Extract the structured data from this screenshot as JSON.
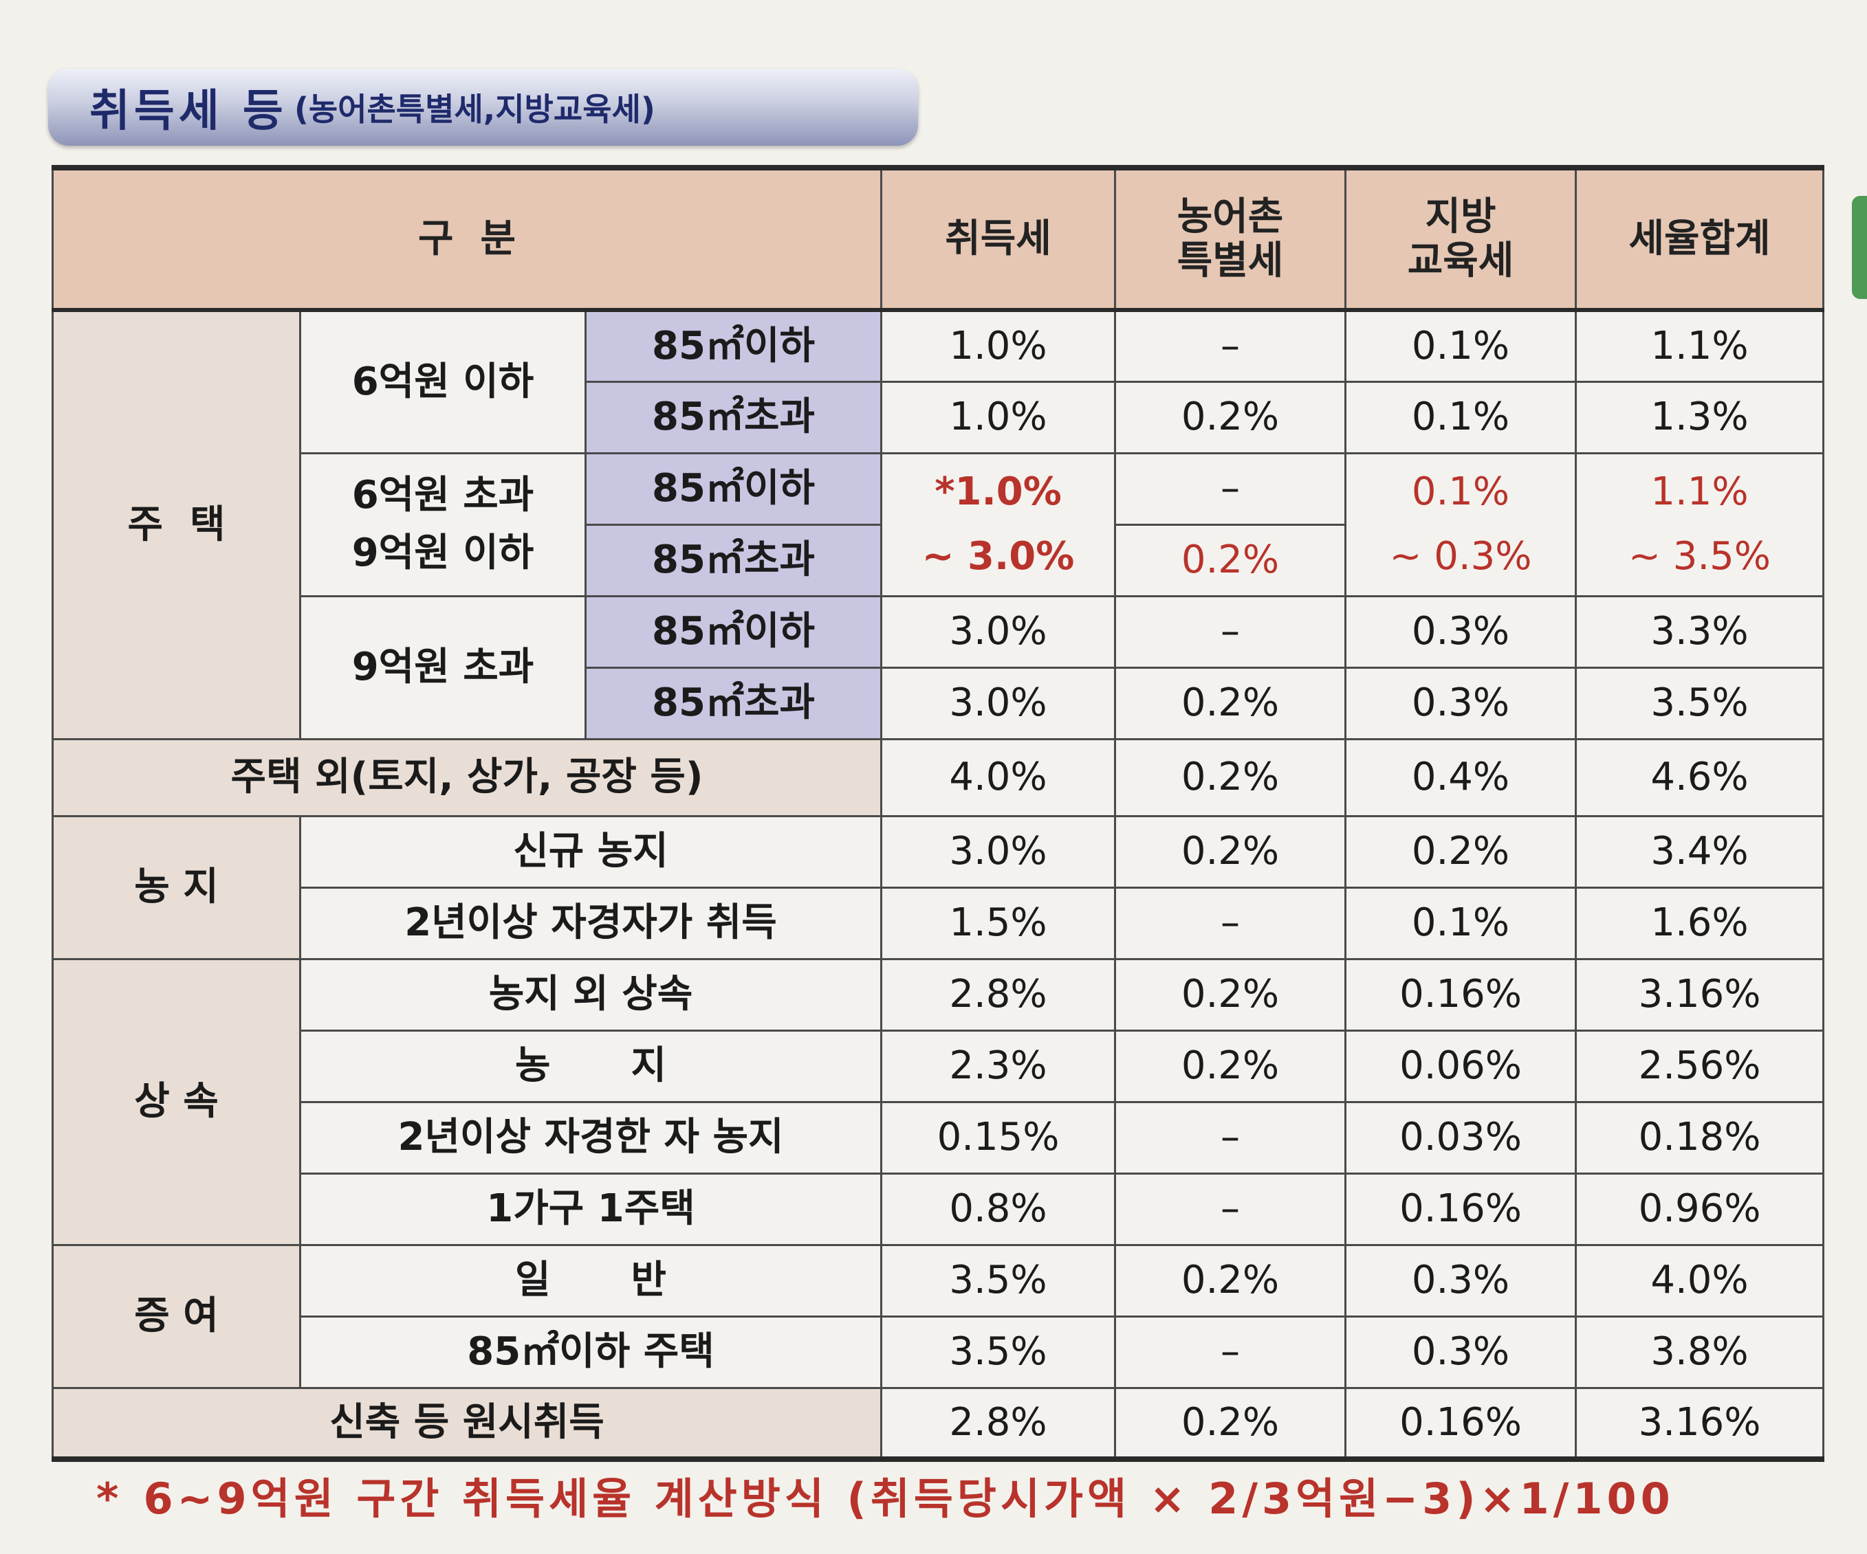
{
  "title": {
    "main": "취득세 등",
    "sub": "(농어촌특별세,지방교육세)"
  },
  "headers": {
    "category": "구  분",
    "acquisition_tax": "취득세",
    "rural_special_tax": "농어촌\n특별세",
    "local_education_tax": "지방\n교육세",
    "total_rate": "세율합계"
  },
  "housing": {
    "group": "주  택",
    "tier1": {
      "label": "6억원 이하",
      "rows": [
        {
          "area": "85㎡이하",
          "acq": "1.0%",
          "rural": "–",
          "edu": "0.1%",
          "total": "1.1%"
        },
        {
          "area": "85㎡초과",
          "acq": "1.0%",
          "rural": "0.2%",
          "edu": "0.1%",
          "total": "1.3%"
        }
      ]
    },
    "tier2": {
      "label_line1": "6억원 초과",
      "label_line2": "9억원 이하",
      "rows": [
        {
          "area": "85㎡이하",
          "rural": "–"
        },
        {
          "area": "85㎡초과",
          "rural": "0.2%"
        }
      ],
      "acq_line1": "*1.0%",
      "acq_line2": "~ 3.0%",
      "edu_line1": "0.1%",
      "edu_line2": "~ 0.3%",
      "total_line1": "1.1%",
      "total_line2": "~ 3.5%"
    },
    "tier3": {
      "label": "9억원 초과",
      "rows": [
        {
          "area": "85㎡이하",
          "acq": "3.0%",
          "rural": "–",
          "edu": "0.3%",
          "total": "3.3%"
        },
        {
          "area": "85㎡초과",
          "acq": "3.0%",
          "rural": "0.2%",
          "edu": "0.3%",
          "total": "3.5%"
        }
      ]
    }
  },
  "non_housing": {
    "label": "주택 외(토지, 상가, 공장 등)",
    "acq": "4.0%",
    "rural": "0.2%",
    "edu": "0.4%",
    "total": "4.6%"
  },
  "farmland": {
    "group": "농 지",
    "rows": [
      {
        "label": "신규 농지",
        "acq": "3.0%",
        "rural": "0.2%",
        "edu": "0.2%",
        "total": "3.4%"
      },
      {
        "label": "2년이상 자경자가 취득",
        "acq": "1.5%",
        "rural": "–",
        "edu": "0.1%",
        "total": "1.6%"
      }
    ]
  },
  "inheritance": {
    "group": "상 속",
    "rows": [
      {
        "label": "농지 외 상속",
        "acq": "2.8%",
        "rural": "0.2%",
        "edu": "0.16%",
        "total": "3.16%"
      },
      {
        "label": "농      지",
        "acq": "2.3%",
        "rural": "0.2%",
        "edu": "0.06%",
        "total": "2.56%"
      },
      {
        "label": "2년이상 자경한 자 농지",
        "acq": "0.15%",
        "rural": "–",
        "edu": "0.03%",
        "total": "0.18%"
      },
      {
        "label": "1가구 1주택",
        "acq": "0.8%",
        "rural": "–",
        "edu": "0.16%",
        "total": "0.96%"
      }
    ]
  },
  "gift": {
    "group": "증 여",
    "rows": [
      {
        "label": "일      반",
        "acq": "3.5%",
        "rural": "0.2%",
        "edu": "0.3%",
        "total": "4.0%"
      },
      {
        "label": "85㎡이하 주택",
        "acq": "3.5%",
        "rural": "–",
        "edu": "0.3%",
        "total": "3.8%"
      }
    ]
  },
  "original_acquisition": {
    "label": "신축 등 원시취득",
    "acq": "2.8%",
    "rural": "0.2%",
    "edu": "0.16%",
    "total": "3.16%"
  },
  "footnote": {
    "star": "*",
    "text": "6~9억원 구간 취득세율 계산방식 (취득당시가액 × 2/3억원−3)×1/100"
  }
}
